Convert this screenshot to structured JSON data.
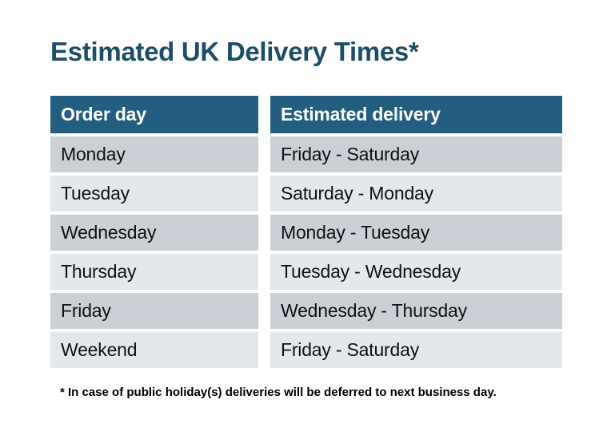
{
  "page": {
    "title": "Estimated UK Delivery Times*",
    "footnote": "* In case of public holiday(s) deliveries will be deferred to next business day."
  },
  "table": {
    "columns": [
      "Order day",
      "Estimated delivery"
    ],
    "rows": [
      {
        "order_day": "Monday",
        "estimated_delivery": "Friday - Saturday"
      },
      {
        "order_day": "Tuesday",
        "estimated_delivery": "Saturday - Monday"
      },
      {
        "order_day": "Wednesday",
        "estimated_delivery": "Monday - Tuesday"
      },
      {
        "order_day": "Thursday",
        "estimated_delivery": "Tuesday - Wednesday"
      },
      {
        "order_day": "Friday",
        "estimated_delivery": "Wednesday - Thursday"
      },
      {
        "order_day": "Weekend",
        "estimated_delivery": "Friday - Saturday"
      }
    ]
  },
  "chart_data": {
    "type": "table",
    "title": "Estimated UK Delivery Times*",
    "columns": [
      "Order day",
      "Estimated delivery"
    ],
    "rows": [
      [
        "Monday",
        "Friday - Saturday"
      ],
      [
        "Tuesday",
        "Saturday - Monday"
      ],
      [
        "Wednesday",
        "Monday - Tuesday"
      ],
      [
        "Thursday",
        "Tuesday - Wednesday"
      ],
      [
        "Friday",
        "Wednesday - Thursday"
      ],
      [
        "Weekend",
        "Friday - Saturday"
      ]
    ],
    "footnote": "* In case of public holiday(s) deliveries will be deferred to next business day.",
    "layout_hints": {
      "header_bg": "#235e80",
      "header_text": "#ffffff",
      "alt_row_colors": [
        "#cbd0d6",
        "#e4e8ec"
      ],
      "title_color": "#1d4d68",
      "background": "#ffffff",
      "grid": "white gutters between cells"
    }
  },
  "colors": {
    "title_text": "#1d4d68",
    "header_bg": "#235e80",
    "header_text": "#ffffff",
    "row_dark": "#cbd0d6",
    "row_light": "#e4e8ec",
    "body_text": "#111111",
    "footnote_text": "#000000",
    "page_bg": "#ffffff"
  }
}
